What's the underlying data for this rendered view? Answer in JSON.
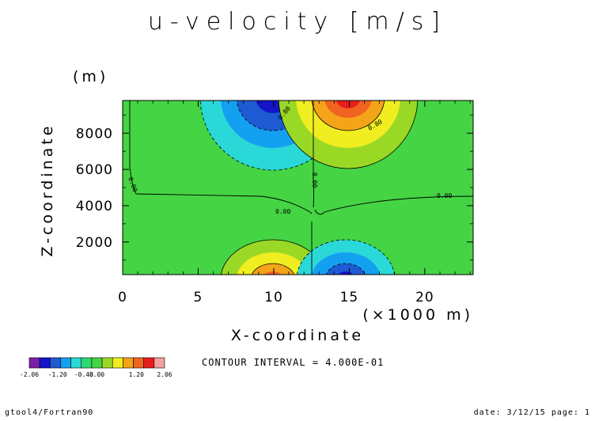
{
  "title": "u-velocity [m/s]",
  "footer": {
    "left": "gtool4/Fortran90",
    "right": "date: 3/12/15 page: 1"
  },
  "contour_interval": "CONTOUR INTERVAL = 4.000E-01",
  "chart_data": {
    "type": "heatmap",
    "title": "u-velocity [m/s]",
    "xlabel": "X-coordinate",
    "xunit": "(×1000 m)",
    "ylabel": "Z-coordinate",
    "yunit": "(m)",
    "xlim": [
      0,
      23.2
    ],
    "ylim": [
      200,
      9800
    ],
    "x_ticks": [
      0,
      5,
      10,
      15,
      20
    ],
    "y_ticks": [
      2000,
      4000,
      6000,
      8000
    ],
    "extrema": [
      {
        "x": 10,
        "z": 9800,
        "value": -2.06
      },
      {
        "x": 15,
        "z": 9800,
        "value": 2.06
      },
      {
        "x": 10,
        "z": 200,
        "value": 2.06
      },
      {
        "x": 15,
        "z": 200,
        "value": -2.06
      }
    ],
    "contour_labels": [
      "0.80",
      "0.80",
      "0.00",
      "0.00",
      "0.00",
      "0.00"
    ],
    "colorbar": {
      "levels": [
        -2.06,
        -1.6,
        -1.2,
        -0.8,
        -0.4,
        0.0,
        0.4,
        0.8,
        1.2,
        1.6,
        2.06
      ],
      "colors": [
        "#7a1fa8",
        "#1414c8",
        "#1e5ad2",
        "#14a0f0",
        "#2ad8d8",
        "#30d870",
        "#44d444",
        "#9ad826",
        "#f0ee20",
        "#f4a418",
        "#f06420",
        "#e81e1e",
        "#f4a0a0"
      ],
      "tick_labels": [
        "-2.06",
        "-1.20",
        "-0.40",
        "0.00",
        "1.20",
        "2.06"
      ]
    },
    "grid": false
  }
}
